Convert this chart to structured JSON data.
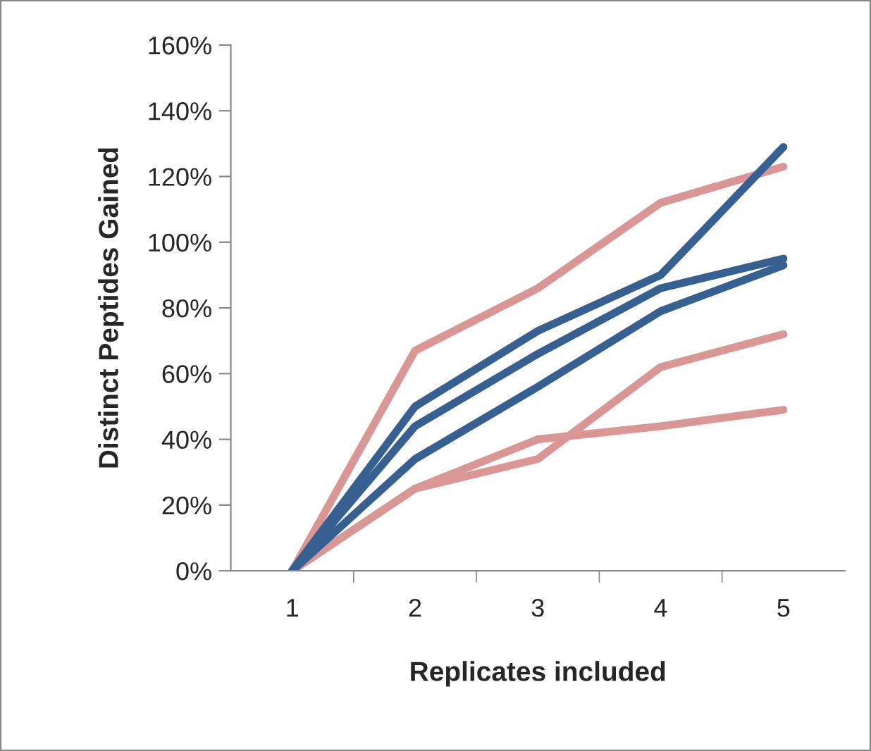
{
  "chart_data": {
    "type": "line",
    "xlabel": "Replicates included",
    "ylabel": "Distinct Peptides Gained",
    "categories": [
      "1",
      "2",
      "3",
      "4",
      "5"
    ],
    "series": [
      {
        "color": "#d99694",
        "values": [
          0,
          67,
          86,
          112,
          123
        ]
      },
      {
        "color": "#d99694",
        "values": [
          0,
          25,
          40,
          44,
          49
        ]
      },
      {
        "color": "#d99694",
        "values": [
          0,
          25,
          34,
          62,
          72
        ]
      },
      {
        "color": "#376092",
        "values": [
          0,
          50,
          73,
          90,
          129
        ]
      },
      {
        "color": "#376092",
        "values": [
          0,
          44,
          66,
          86,
          95
        ]
      },
      {
        "color": "#376092",
        "values": [
          0,
          34,
          56,
          79,
          93
        ]
      }
    ],
    "ylim": [
      0,
      160
    ],
    "yticks": [
      {
        "value": 0,
        "label": "0%"
      },
      {
        "value": 20,
        "label": "20%"
      },
      {
        "value": 40,
        "label": "40%"
      },
      {
        "value": 60,
        "label": "60%"
      },
      {
        "value": 80,
        "label": "80%"
      },
      {
        "value": 100,
        "label": "100%"
      },
      {
        "value": 120,
        "label": "120%"
      },
      {
        "value": 140,
        "label": "140%"
      },
      {
        "value": 160,
        "label": "160%"
      }
    ],
    "grid": false,
    "marker": "none",
    "line_style": "solid"
  }
}
